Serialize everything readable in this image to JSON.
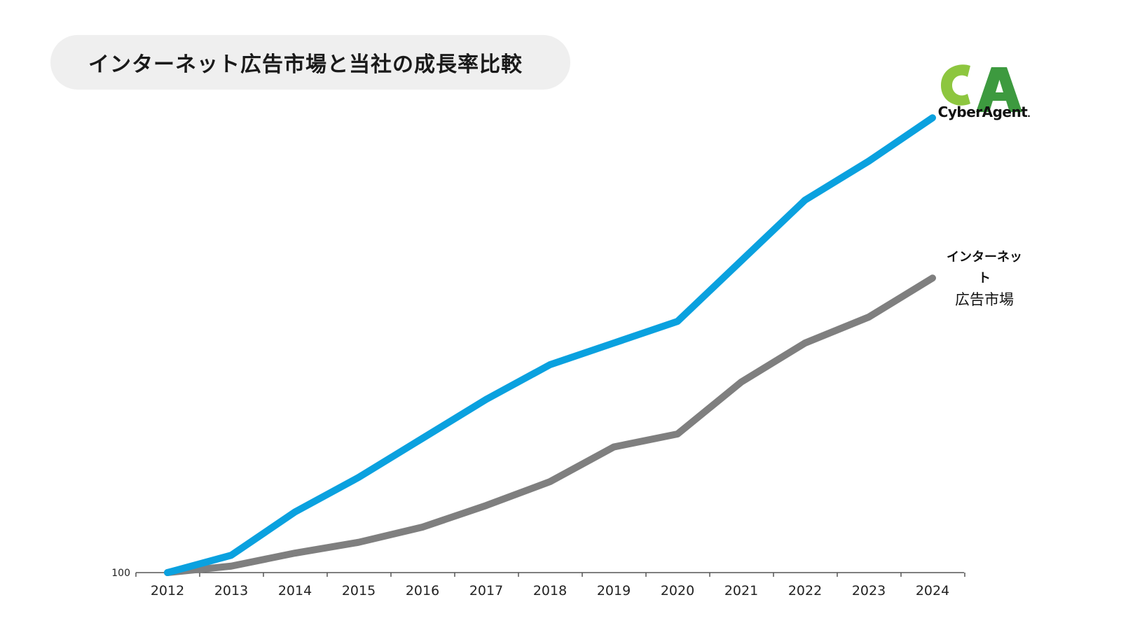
{
  "title": "インターネット広告市場と当社の成長率比較",
  "logo": {
    "wordmark": "CyberAgent",
    "registered_mark": ".",
    "colors": {
      "light_green": "#8dc63f",
      "dark_green": "#3d9a3f"
    }
  },
  "series_label": {
    "line1": "インターネット",
    "line2": "広告市場"
  },
  "colors": {
    "cyberagent": "#0aa1df",
    "market": "#7f7f7f",
    "axis": "#555555"
  },
  "chart_data": {
    "type": "line",
    "categories": [
      "2012",
      "2013",
      "2014",
      "2015",
      "2016",
      "2017",
      "2018",
      "2019",
      "2020",
      "2021",
      "2022",
      "2023",
      "2024"
    ],
    "ytick_label": "100",
    "series": [
      {
        "name": "CyberAgent",
        "values": [
          100,
          104,
          114,
          122,
          131,
          140,
          148,
          153,
          158,
          172,
          186,
          195,
          205
        ]
      },
      {
        "name": "インターネット広告市場",
        "values": [
          100,
          101.5,
          104.5,
          107,
          110.5,
          115.5,
          121,
          129,
          132,
          144,
          153,
          159,
          168
        ]
      }
    ],
    "ylim": [
      100,
      212
    ],
    "grid": false,
    "legend": "direct labels at line ends"
  }
}
